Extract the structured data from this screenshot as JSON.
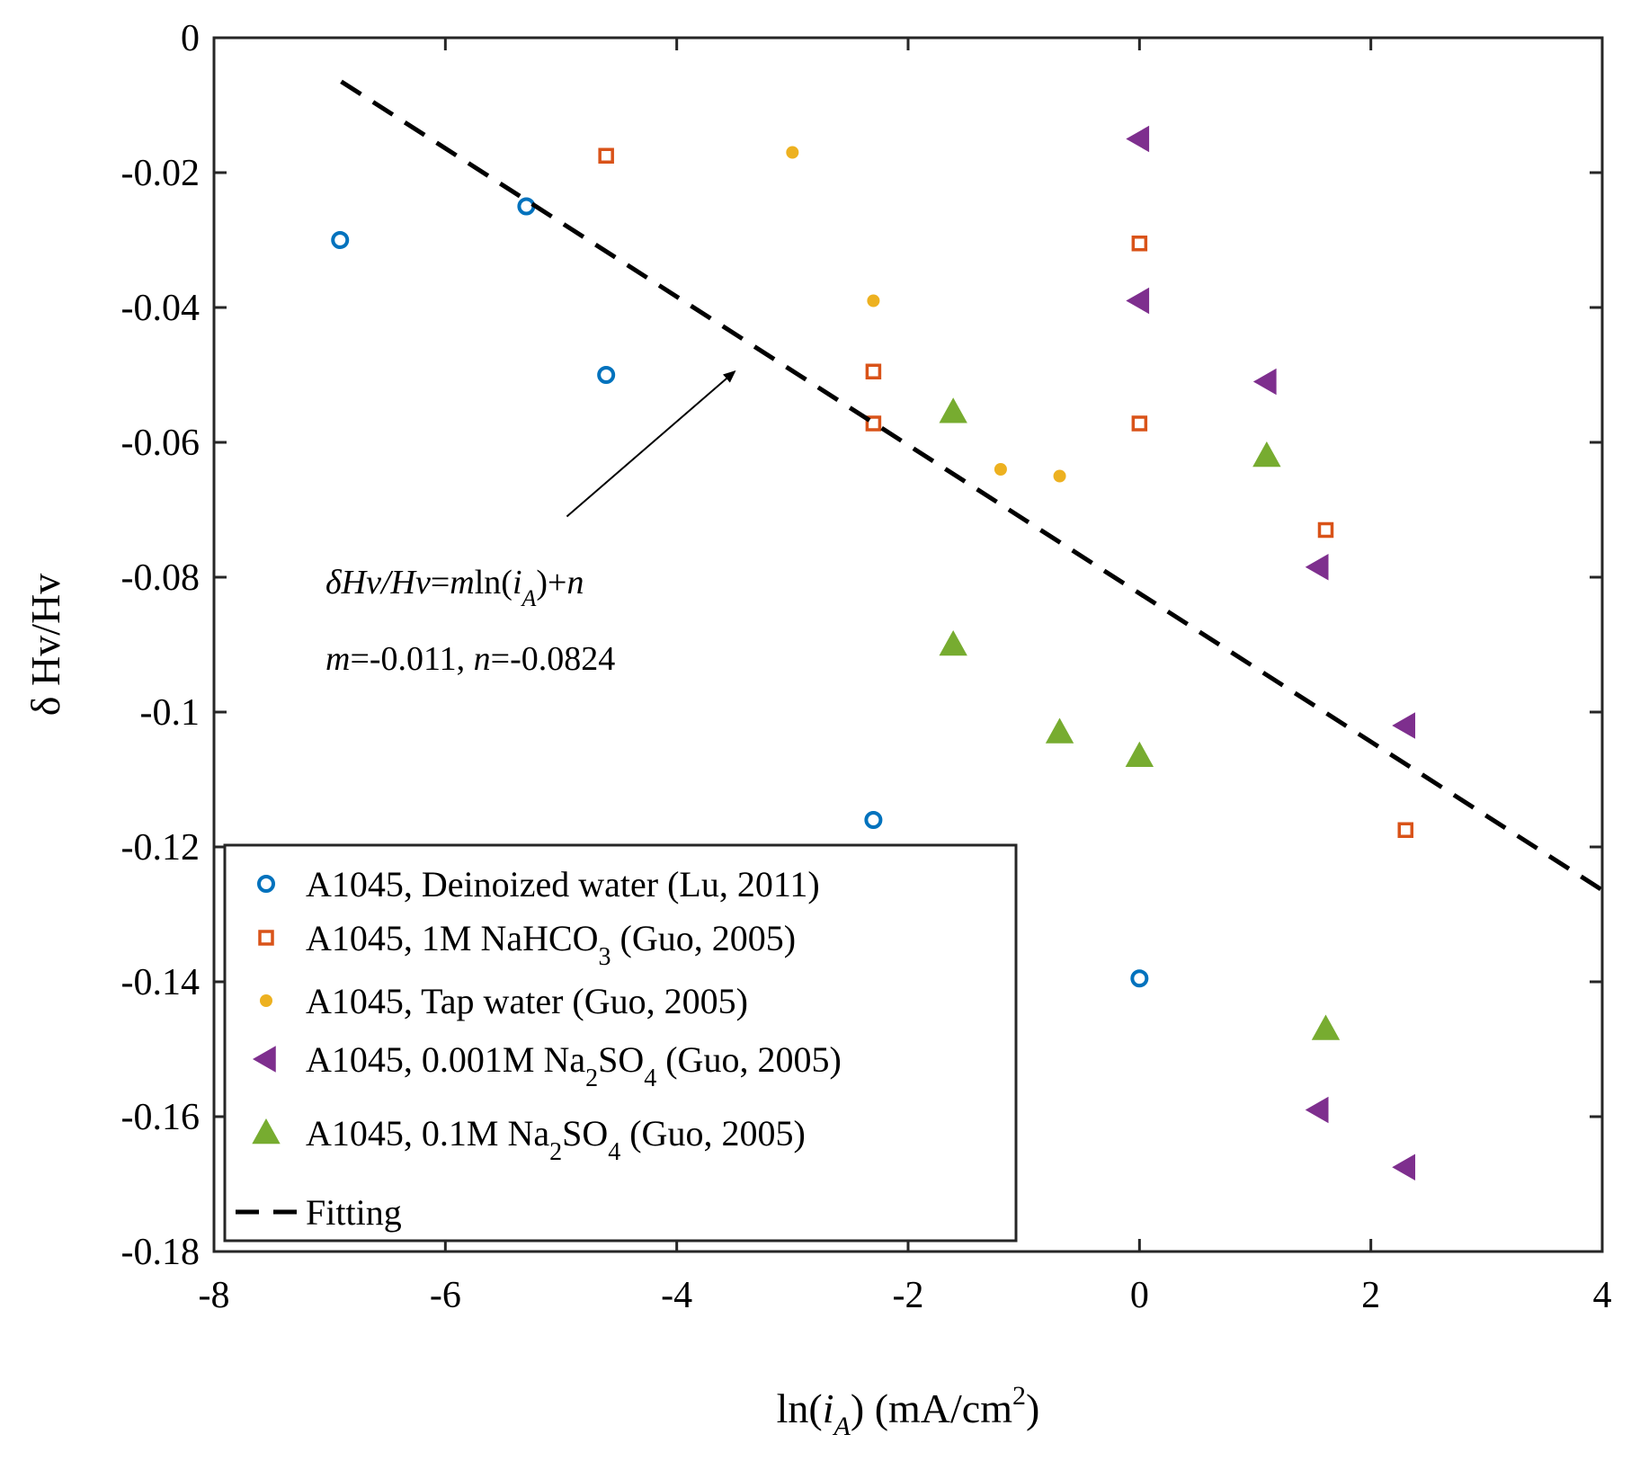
{
  "chart_data": {
    "type": "scatter",
    "title": "",
    "xlabel": {
      "prefix": "ln(",
      "var": "i",
      "sub": "A",
      "suffix": ") (mA/cm",
      "sup": "2",
      "close": ")"
    },
    "ylabel": "δ Hv/Hv",
    "xlim": [
      -8,
      4
    ],
    "ylim": [
      -0.18,
      0
    ],
    "xticks": [
      -8,
      -6,
      -4,
      -2,
      0,
      2,
      4
    ],
    "yticks": [
      0,
      -0.02,
      -0.04,
      -0.06,
      -0.08,
      -0.1,
      -0.12,
      -0.14,
      -0.16,
      -0.18
    ],
    "xtick_labels": [
      "-8",
      "-6",
      "-4",
      "-2",
      "0",
      "2",
      "4"
    ],
    "ytick_labels": [
      "0",
      "-0.02",
      "-0.04",
      "-0.06",
      "-0.08",
      "-0.1",
      "-0.12",
      "-0.14",
      "-0.16",
      "-0.18"
    ],
    "grid": false,
    "legend_position": "bottom-left",
    "series": [
      {
        "name": "A1045, Deinoized water (Lu, 2011)",
        "legend": {
          "main": "A1045, Deinoized water (Lu, 2011)"
        },
        "marker": "circle-open",
        "color": "#0072BD",
        "x": [
          -6.91,
          -5.3,
          -4.61,
          -2.3,
          0
        ],
        "y": [
          -0.03,
          -0.025,
          -0.05,
          -0.116,
          -0.1395
        ]
      },
      {
        "name": "A1045, 1M NaHCO3 (Guo, 2005)",
        "legend": {
          "main": "A1045, 1M NaHCO",
          "sub": "3",
          "tail": " (Guo, 2005)"
        },
        "marker": "square-open",
        "color": "#D95319",
        "x": [
          -4.61,
          -2.3,
          -2.3,
          0,
          0,
          1.61,
          2.3
        ],
        "y": [
          -0.0175,
          -0.0495,
          -0.0572,
          -0.0305,
          -0.0572,
          -0.073,
          -0.1175
        ]
      },
      {
        "name": "A1045, Tap water (Guo, 2005)",
        "legend": {
          "main": "A1045, Tap water  (Guo, 2005)"
        },
        "marker": "dot",
        "color": "#EDB120",
        "x": [
          -3.0,
          -2.3,
          -1.2,
          -0.69
        ],
        "y": [
          -0.017,
          -0.039,
          -0.064,
          -0.065
        ]
      },
      {
        "name": "A1045, 0.001M Na2SO4 (Guo, 2005)",
        "legend": {
          "main": "A1045, 0.001M Na",
          "sub": "2",
          "mid": "SO",
          "sub2": "4",
          "tail": "  (Guo, 2005)"
        },
        "marker": "triangle-left",
        "color": "#7E2F8E",
        "x": [
          0,
          0,
          1.1,
          1.55,
          2.3,
          1.55,
          2.3
        ],
        "y": [
          -0.015,
          -0.039,
          -0.051,
          -0.0785,
          -0.102,
          -0.159,
          -0.1675
        ]
      },
      {
        "name": "A1045, 0.1M Na2SO4 (Guo, 2005)",
        "legend": {
          "main": "A1045, 0.1M Na",
          "sub": "2",
          "mid": "SO",
          "sub2": "4",
          "tail": "  (Guo, 2005)"
        },
        "marker": "triangle-up",
        "color": "#77AC30",
        "x": [
          -1.61,
          -1.61,
          -0.69,
          0,
          1.1,
          1.61
        ],
        "y": [
          -0.0555,
          -0.09,
          -0.103,
          -0.1065,
          -0.062,
          -0.147
        ]
      }
    ],
    "fit": {
      "name": "Fitting",
      "slope": -0.011,
      "intercept": -0.0824,
      "x_range": [
        -6.9,
        4
      ],
      "color": "#000000",
      "style": "dashed"
    },
    "annotation": {
      "line1": {
        "a": "δHv/Hv",
        "b": "=",
        "c": "m",
        "d": "ln(",
        "e": "i",
        "f": "A",
        "g": ")+",
        "h": "n"
      },
      "line2": {
        "a": "m",
        "b": "=-0.011, ",
        "c": "n",
        "d": "=-0.0824"
      },
      "arrow_from": [
        -4.95,
        -0.071
      ],
      "arrow_to": [
        -3.5,
        -0.0495
      ]
    }
  }
}
